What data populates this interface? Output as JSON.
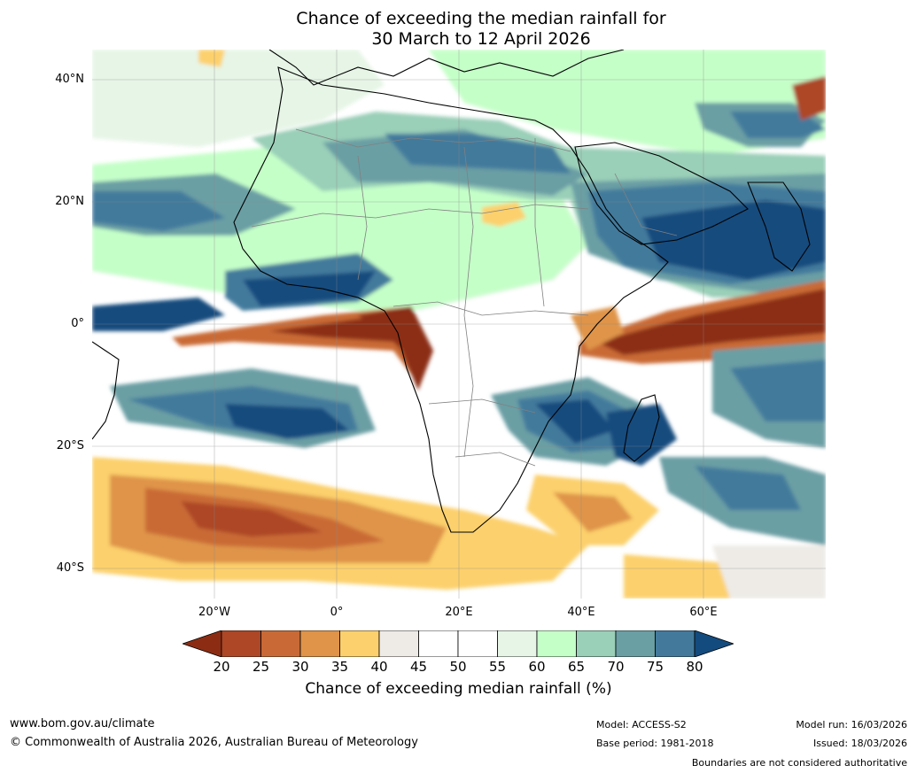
{
  "title": {
    "line1": "Chance of exceeding the median rainfall for",
    "line2": "30 March to 12 April 2026"
  },
  "map": {
    "region": "Africa",
    "lat_labels": [
      "40°N",
      "20°N",
      "0°",
      "20°S",
      "40°S"
    ],
    "lon_labels": [
      "20°W",
      "0°",
      "20°E",
      "40°E",
      "60°E"
    ]
  },
  "legend": {
    "ticks": [
      "20",
      "25",
      "30",
      "35",
      "40",
      "45",
      "50",
      "55",
      "60",
      "65",
      "70",
      "75",
      "80"
    ],
    "colors": [
      "#8c2d13",
      "#ad4726",
      "#c96a36",
      "#df9449",
      "#fcd06c",
      "#eeebe6",
      "#ffffff",
      "#ffffff",
      "#e6f5e6",
      "#c5ffc8",
      "#9acfb8",
      "#6a9fa4",
      "#437a9c",
      "#134b7e"
    ],
    "label": "Chance of exceeding median rainfall (%)"
  },
  "footer": {
    "website": "www.bom.gov.au/climate",
    "copyright": "© Commonwealth of Australia 2026, Australian Bureau of Meteorology",
    "model": "Model: ACCESS-S2",
    "base_period": "Base period: 1981-2018",
    "model_run": "Model run: 16/03/2026",
    "issued": "Issued: 18/03/2026",
    "disclaimer": "Boundaries are not considered authoritative"
  }
}
